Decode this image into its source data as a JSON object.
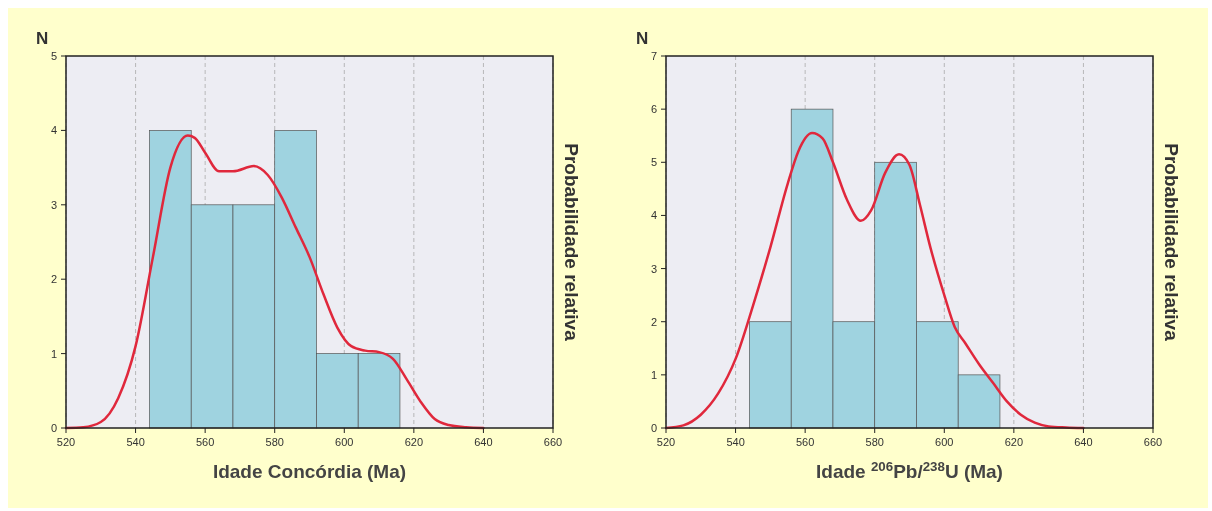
{
  "chart_data": [
    {
      "type": "histogram",
      "ylabel": "N",
      "y2label": "Probabilidade relativa",
      "xlabel": "Idade Concórdia (Ma)",
      "bins": [
        544,
        556,
        568,
        580,
        592,
        604,
        616
      ],
      "values": [
        4,
        3,
        3,
        4,
        1,
        1
      ],
      "color": "#9fd3e0",
      "xlim": [
        520,
        660
      ],
      "xticks": [
        520,
        540,
        560,
        580,
        600,
        620,
        640,
        660
      ],
      "ylim": [
        0,
        5
      ],
      "yticks": [
        0,
        1,
        2,
        3,
        4,
        5
      ],
      "grid": "x",
      "series": [
        {
          "type": "line",
          "color": "#e0283c",
          "x": [
            520,
            525,
            530,
            535,
            540,
            545,
            550,
            555,
            557,
            560,
            564,
            568,
            574,
            578,
            582,
            586,
            590,
            594,
            598,
            602,
            606,
            610,
            614,
            618,
            622,
            626,
            630,
            635,
            640
          ],
          "values": [
            0,
            0.01,
            0.08,
            0.4,
            1.1,
            2.3,
            3.5,
            3.93,
            3.9,
            3.7,
            3.45,
            3.45,
            3.52,
            3.4,
            3.1,
            2.7,
            2.3,
            1.8,
            1.35,
            1.1,
            1.04,
            1.02,
            0.93,
            0.65,
            0.35,
            0.12,
            0.04,
            0.01,
            0
          ]
        }
      ]
    },
    {
      "type": "histogram",
      "ylabel": "N",
      "y2label": "Probabilidade relativa",
      "xlabel": "Idade $^{206}$Pb/$^{238}$U (Ma)",
      "bins": [
        544,
        556,
        568,
        580,
        592,
        604,
        616
      ],
      "values": [
        2,
        6,
        2,
        5,
        2,
        1
      ],
      "color": "#9fd3e0",
      "xlim": [
        520,
        660
      ],
      "xticks": [
        520,
        540,
        560,
        580,
        600,
        620,
        640,
        660
      ],
      "ylim": [
        0,
        7
      ],
      "yticks": [
        0,
        1,
        2,
        3,
        4,
        5,
        6,
        7
      ],
      "grid": "x",
      "series": [
        {
          "type": "line",
          "color": "#e0283c",
          "x": [
            520,
            525,
            530,
            535,
            540,
            545,
            550,
            555,
            558,
            562,
            565,
            568,
            572,
            576,
            579,
            583,
            587,
            590,
            593,
            596,
            600,
            603,
            606,
            610,
            614,
            618,
            622,
            626,
            630,
            635,
            640
          ],
          "values": [
            0,
            0.05,
            0.25,
            0.65,
            1.3,
            2.3,
            3.4,
            4.6,
            5.2,
            5.55,
            5.45,
            5.0,
            4.3,
            3.9,
            4.1,
            4.8,
            5.15,
            4.95,
            4.2,
            3.4,
            2.5,
            1.9,
            1.6,
            1.2,
            0.85,
            0.5,
            0.25,
            0.1,
            0.03,
            0.01,
            0
          ]
        }
      ]
    }
  ]
}
